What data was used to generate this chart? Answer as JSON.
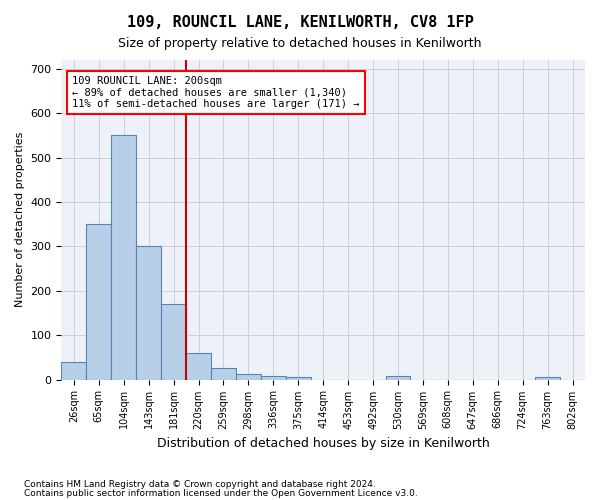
{
  "title": "109, ROUNCIL LANE, KENILWORTH, CV8 1FP",
  "subtitle": "Size of property relative to detached houses in Kenilworth",
  "xlabel": "Distribution of detached houses by size in Kenilworth",
  "ylabel": "Number of detached properties",
  "footnote1": "Contains HM Land Registry data © Crown copyright and database right 2024.",
  "footnote2": "Contains public sector information licensed under the Open Government Licence v3.0.",
  "annotation_line1": "109 ROUNCIL LANE: 200sqm",
  "annotation_line2": "← 89% of detached houses are smaller (1,340)",
  "annotation_line3": "11% of semi-detached houses are larger (171) →",
  "bar_color": "#b8cfe8",
  "bar_edge_color": "#5585b5",
  "vline_color": "#cc0000",
  "vline_x_index": 5,
  "background_color": "#eef2f8",
  "bins": [
    "26sqm",
    "65sqm",
    "104sqm",
    "143sqm",
    "181sqm",
    "220sqm",
    "259sqm",
    "298sqm",
    "336sqm",
    "375sqm",
    "414sqm",
    "453sqm",
    "492sqm",
    "530sqm",
    "569sqm",
    "608sqm",
    "647sqm",
    "686sqm",
    "724sqm",
    "763sqm",
    "802sqm"
  ],
  "values": [
    40,
    350,
    550,
    300,
    170,
    60,
    25,
    12,
    7,
    5,
    0,
    0,
    0,
    7,
    0,
    0,
    0,
    0,
    0,
    5,
    0
  ],
  "ylim": [
    0,
    720
  ],
  "yticks": [
    0,
    100,
    200,
    300,
    400,
    500,
    600,
    700
  ]
}
